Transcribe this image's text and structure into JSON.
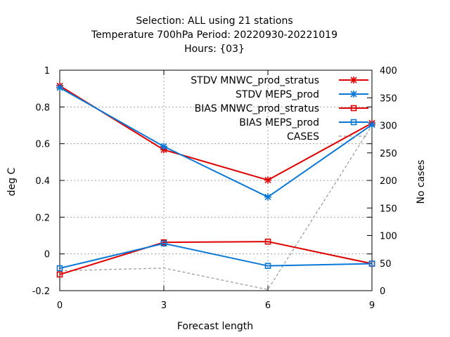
{
  "chart_data": {
    "type": "line",
    "title_lines": [
      "Selection: ALL using    21 stations",
      "Temperature 700hPa   Period: 20220930-20221019",
      "Hours: {03}"
    ],
    "xlabel": "Forecast length",
    "ylabel": "deg C",
    "y2label": "No cases",
    "x": [
      0,
      3,
      6,
      9
    ],
    "xticks": [
      0,
      3,
      6,
      9
    ],
    "xlim": [
      0,
      9
    ],
    "ylim": [
      -0.2,
      1.0
    ],
    "yticks": [
      -0.2,
      0,
      0.2,
      0.4,
      0.6,
      0.8,
      1
    ],
    "ytick_labels": [
      "-0.2",
      "0",
      "0.2",
      "0.4",
      "0.6",
      "0.8",
      "1"
    ],
    "y2lim": [
      0,
      400
    ],
    "y2ticks": [
      0,
      50,
      100,
      150,
      200,
      250,
      300,
      350,
      400
    ],
    "grid": true,
    "legend_position": "top-right",
    "series": [
      {
        "name": "STDV MNWC_prod_stratus",
        "axis": "y",
        "marker": "star",
        "color": "#e00000",
        "dashed": false,
        "values": [
          0.915,
          0.567,
          0.402,
          0.712
        ]
      },
      {
        "name": "STDV MEPS_prod",
        "axis": "y",
        "marker": "star",
        "color": "#0a78d8",
        "dashed": false,
        "values": [
          0.905,
          0.585,
          0.31,
          0.703
        ]
      },
      {
        "name": "BIAS MNWC_prod_stratus",
        "axis": "y",
        "marker": "square",
        "color": "#e00000",
        "dashed": false,
        "values": [
          -0.112,
          0.063,
          0.067,
          -0.053
        ]
      },
      {
        "name": "BIAS MEPS_prod",
        "axis": "y",
        "marker": "square",
        "color": "#0a78d8",
        "dashed": false,
        "values": [
          -0.078,
          0.057,
          -0.065,
          -0.053
        ]
      },
      {
        "name": "CASES",
        "axis": "y2",
        "marker": "none",
        "color": "#999999",
        "dashed": true,
        "values": [
          36,
          41,
          2,
          300
        ]
      }
    ]
  }
}
